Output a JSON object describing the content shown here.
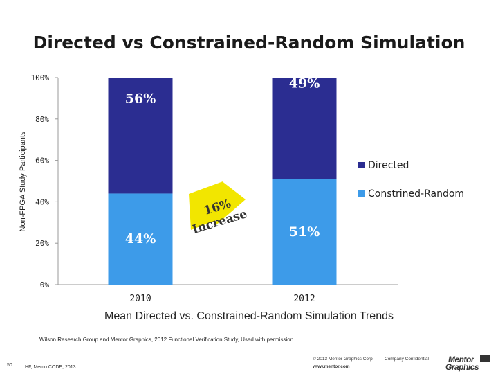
{
  "slide": {
    "title": "Directed vs Constrained-Random Simulation",
    "caption": "Mean Directed vs. Constrained-Random Simulation Trends",
    "source_note": "Wilson Research Group and Mentor Graphics, 2012 Functional Verification Study, Used with permission",
    "page_number": "50",
    "event": "HF, Memo.CODE, 2013",
    "copyright": "© 2013 Mentor Graphics Corp.",
    "confidential": "Company Confidential",
    "website": "www.mentor.com",
    "logo_line1": "Mentor",
    "logo_line2": "Graphics"
  },
  "chart_data": {
    "type": "bar",
    "stacked": true,
    "categories": [
      "2010",
      "2012"
    ],
    "series": [
      {
        "name": "Constrined-Random",
        "values": [
          44,
          51
        ],
        "labels": [
          "44%",
          "51%"
        ],
        "color": "#3d9be9"
      },
      {
        "name": "Directed",
        "values": [
          56,
          49
        ],
        "labels": [
          "56%",
          "49%"
        ],
        "color": "#2b2d91"
      }
    ],
    "ylabel": "Non-FPGA Study Participants",
    "ylim": [
      0,
      100
    ],
    "yticks": [
      "0%",
      "20%",
      "40%",
      "60%",
      "80%",
      "100%"
    ],
    "legend_position": "right",
    "annotation": {
      "line1": "16%",
      "line2": "Increase",
      "color": "#f2e600"
    }
  }
}
